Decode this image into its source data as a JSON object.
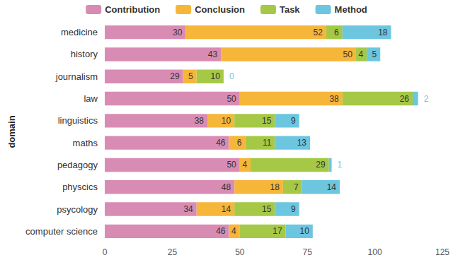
{
  "chart_data": {
    "type": "bar",
    "orientation": "horizontal",
    "stacked": true,
    "data_labels": true,
    "grid": false,
    "legend": "top",
    "y_label": "domain",
    "categories": [
      "medicine",
      "history",
      "journalism",
      "law",
      "linguistics",
      "maths",
      "pedagogy",
      "physcics",
      "psycology",
      "computer science"
    ],
    "series": [
      {
        "name": "Contribution",
        "color": "#d98cb3",
        "values": [
          30,
          43,
          29,
          50,
          38,
          46,
          50,
          48,
          34,
          46
        ]
      },
      {
        "name": "Conclusion",
        "color": "#f5b63a",
        "values": [
          52,
          50,
          5,
          38,
          10,
          6,
          4,
          18,
          14,
          4
        ]
      },
      {
        "name": "Task",
        "color": "#a5c946",
        "values": [
          6,
          4,
          10,
          26,
          15,
          11,
          29,
          7,
          15,
          17
        ]
      },
      {
        "name": "Method",
        "color": "#6cc6e0",
        "values": [
          18,
          5,
          0,
          2,
          9,
          13,
          1,
          14,
          9,
          10
        ]
      }
    ],
    "xlim": [
      0,
      125
    ],
    "xticks": [
      0,
      25,
      50,
      75,
      100,
      125
    ]
  }
}
